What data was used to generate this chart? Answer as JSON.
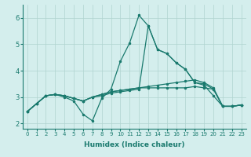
{
  "background_color": "#d4eeed",
  "grid_color": "#b0d4d0",
  "line_color": "#1a7a6e",
  "xlabel": "Humidex (Indice chaleur)",
  "xlim": [
    -0.5,
    23.5
  ],
  "ylim": [
    1.8,
    6.5
  ],
  "xticks": [
    0,
    1,
    2,
    3,
    4,
    5,
    6,
    7,
    8,
    9,
    10,
    11,
    12,
    13,
    14,
    15,
    16,
    17,
    18,
    19,
    20,
    21,
    22,
    23
  ],
  "yticks": [
    2,
    3,
    4,
    5,
    6
  ],
  "series": [
    [
      2.45,
      2.75,
      3.05,
      3.1,
      3.0,
      2.85,
      2.35,
      2.1,
      2.95,
      3.3,
      4.35,
      5.05,
      6.1,
      5.7,
      4.8,
      4.65,
      4.3,
      4.05,
      3.55,
      3.45,
      3.05,
      2.65,
      2.65,
      2.7
    ],
    [
      2.45,
      2.75,
      3.05,
      3.1,
      3.05,
      2.95,
      2.85,
      3.0,
      3.1,
      3.2,
      3.25,
      3.3,
      3.35,
      3.35,
      3.35,
      3.35,
      3.35,
      3.35,
      3.4,
      3.35,
      3.3,
      2.65,
      2.65,
      2.7
    ],
    [
      2.45,
      2.75,
      3.05,
      3.1,
      3.05,
      2.95,
      2.85,
      3.0,
      3.1,
      3.2,
      3.25,
      3.3,
      3.35,
      3.4,
      3.45,
      3.5,
      3.55,
      3.6,
      3.65,
      3.55,
      3.35,
      2.65,
      2.65,
      2.7
    ],
    [
      2.45,
      2.75,
      3.05,
      3.1,
      3.05,
      2.95,
      2.85,
      3.0,
      3.05,
      3.15,
      3.2,
      3.25,
      3.3,
      5.7,
      4.8,
      4.65,
      4.3,
      4.05,
      3.55,
      3.5,
      3.3,
      2.65,
      2.65,
      2.7
    ]
  ],
  "marker": ".",
  "marker_size": 3,
  "line_width": 0.9,
  "tick_fontsize_x": 5,
  "tick_fontsize_y": 6,
  "label_fontsize": 6.5
}
